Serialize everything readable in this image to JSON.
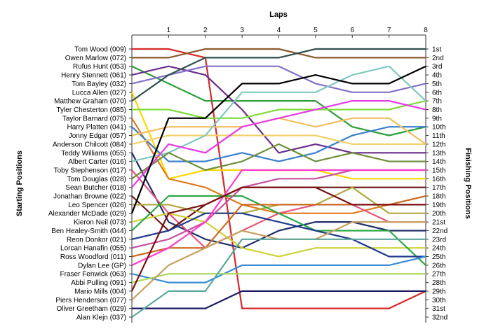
{
  "chart_data": {
    "type": "line",
    "title": "",
    "xlabel": "Laps",
    "ylabel_left": "Starting Positions",
    "ylabel_right": "Finishing Positions",
    "x": [
      0,
      1,
      2,
      3,
      4,
      5,
      6,
      7,
      8
    ],
    "x_tick_labels": [
      "1",
      "2",
      "3",
      "4",
      "5",
      "6",
      "7",
      "8"
    ],
    "ylim": [
      1,
      32
    ],
    "y_inverted": true,
    "grid": false,
    "legend": "none",
    "starting_labels": [
      "Tom Wood (009)",
      "Owen Marlow (072)",
      "Rufus Hunt (053)",
      "Henry Stennett (061)",
      "Tom Bayley (032)",
      "Lucca Allen (027)",
      "Matthew Graham (070)",
      "Tyler Chesterton (085)",
      "Taylor Barnard (075)",
      "Harry Platten (041)",
      "Jonny Edgar (057)",
      "Anderson Chilcott (084)",
      "Teddy Williams (055)",
      "Albert Carter (016)",
      "Toby Stephenson (017)",
      "Tom Douglas (028)",
      "Sean Butcher (018)",
      "Jonathan Browne (022)",
      "Leo Spencer (026)",
      "Alexander McDade (029)",
      "Kieron Neil (073)",
      "Ben Healey-Smith (044)",
      "Reon Donkor (021)",
      "Lorcan Hanafin (055)",
      "Ross Woodford (011)",
      "Dylan Lee (GP)",
      "Fraser Fenwick (063)",
      "Abbi Pulling (091)",
      "Mario Mills (004)",
      "Piers Henderson (077)",
      "Oliver Greetham (029)",
      "Alan Klejn (037)"
    ],
    "finishing_labels": [
      "1st",
      "2nd",
      "3rd",
      "4th",
      "5th",
      "6th",
      "7th",
      "8th",
      "9th",
      "10th",
      "11th",
      "12th",
      "13th",
      "14th",
      "15th",
      "16th",
      "17th",
      "18th",
      "19th",
      "20th",
      "21st",
      "22nd",
      "23rd",
      "24th",
      "25th",
      "26th",
      "27th",
      "28th",
      "29th",
      "30th",
      "31st",
      "32nd"
    ],
    "series": [
      {
        "color": "#d62728",
        "values": [
          1,
          1,
          2,
          31,
          31,
          31,
          31,
          31,
          29
        ]
      },
      {
        "color": "#8b5a2b",
        "values": [
          2,
          2,
          1,
          1,
          1,
          2,
          2,
          2,
          2
        ]
      },
      {
        "color": "#2e9e3a",
        "values": [
          3,
          5,
          7,
          7,
          7,
          7,
          10,
          11,
          10
        ]
      },
      {
        "color": "#6b2d8b",
        "values": [
          4,
          3,
          4,
          8,
          13,
          12,
          13,
          13,
          13
        ]
      },
      {
        "color": "#8470c8",
        "values": [
          5,
          4,
          3,
          3,
          3,
          5,
          6,
          6,
          5
        ]
      },
      {
        "color": "#ffd700",
        "values": [
          6,
          16,
          15,
          15,
          15,
          15,
          16,
          16,
          16
        ]
      },
      {
        "color": "#2f4f4f",
        "values": [
          7,
          4,
          2,
          2,
          2,
          1,
          1,
          1,
          1
        ]
      },
      {
        "color": "#7fdc3c",
        "values": [
          8,
          8,
          9,
          9,
          8,
          8,
          8,
          8,
          7
        ]
      },
      {
        "color": "#e07b20",
        "values": [
          9,
          16,
          17,
          19,
          20,
          20,
          20,
          19,
          19
        ]
      },
      {
        "color": "#3a7ecf",
        "values": [
          10,
          14,
          14,
          13,
          14,
          13,
          11,
          10,
          10
        ]
      },
      {
        "color": "#f0c060",
        "values": [
          11,
          10,
          10,
          10,
          9,
          10,
          9,
          9,
          12
        ]
      },
      {
        "color": "#f2d16b",
        "values": [
          12,
          11,
          11,
          11,
          11,
          11,
          12,
          12,
          12
        ]
      },
      {
        "color": "#1f2f6b",
        "values": [
          13,
          21,
          23,
          24,
          22,
          21,
          21,
          22,
          22
        ]
      },
      {
        "color": "#80c9c0",
        "values": [
          14,
          13,
          11,
          6,
          6,
          6,
          4,
          3,
          7
        ]
      },
      {
        "color": "#e8547a",
        "values": [
          15,
          20,
          24,
          22,
          20,
          19,
          19,
          21,
          21
        ]
      },
      {
        "color": "#6e8e3a",
        "values": [
          16,
          13,
          15,
          14,
          12,
          14,
          13,
          14,
          14
        ]
      },
      {
        "color": "#e53be5",
        "values": [
          17,
          12,
          13,
          10,
          9,
          8,
          7,
          7,
          8
        ]
      },
      {
        "color": "#6b1515",
        "values": [
          18,
          22,
          19,
          17,
          17,
          17,
          17,
          17,
          17
        ]
      },
      {
        "color": "#b0aa40",
        "values": [
          19,
          19,
          20,
          20,
          19,
          19,
          17,
          20,
          20
        ]
      },
      {
        "color": "#000000",
        "values": [
          20,
          9,
          9,
          5,
          5,
          4,
          5,
          5,
          3
        ]
      },
      {
        "color": "#cfd23a",
        "values": [
          21,
          20,
          21,
          24,
          25,
          24,
          24,
          24,
          24
        ]
      },
      {
        "color": "#2aa845",
        "values": [
          22,
          18,
          18,
          18,
          20,
          22,
          22,
          22,
          26
        ]
      },
      {
        "color": "#1f3a8a",
        "values": [
          23,
          22,
          20,
          20,
          21,
          22,
          23,
          25,
          25
        ]
      },
      {
        "color": "#c84f9f",
        "values": [
          24,
          23,
          21,
          17,
          16,
          16,
          15,
          15,
          15
        ]
      },
      {
        "color": "#cc6a20",
        "values": [
          25,
          24,
          24,
          19,
          19,
          19,
          19,
          19,
          18
        ]
      },
      {
        "color": "#ff3ad0",
        "values": [
          26,
          24,
          21,
          15,
          15,
          15,
          15,
          15,
          15
        ]
      },
      {
        "color": "#3a8cd6",
        "values": [
          27,
          28,
          28,
          26,
          26,
          26,
          26,
          26,
          25
        ]
      },
      {
        "color": "#a9d95a",
        "values": [
          28,
          27,
          27,
          27,
          27,
          27,
          27,
          27,
          27
        ]
      },
      {
        "color": "#7a1111",
        "values": [
          29,
          20,
          19,
          17,
          17,
          17,
          19,
          19,
          19
        ]
      },
      {
        "color": "#c8a060",
        "values": [
          30,
          26,
          24,
          22,
          23,
          23,
          21,
          21,
          21
        ]
      },
      {
        "color": "#1a1a66",
        "values": [
          31,
          31,
          31,
          29,
          29,
          29,
          29,
          29,
          29
        ]
      },
      {
        "color": "#5aa89a",
        "values": [
          32,
          29,
          29,
          23,
          23,
          23,
          23,
          23,
          23
        ]
      }
    ]
  }
}
